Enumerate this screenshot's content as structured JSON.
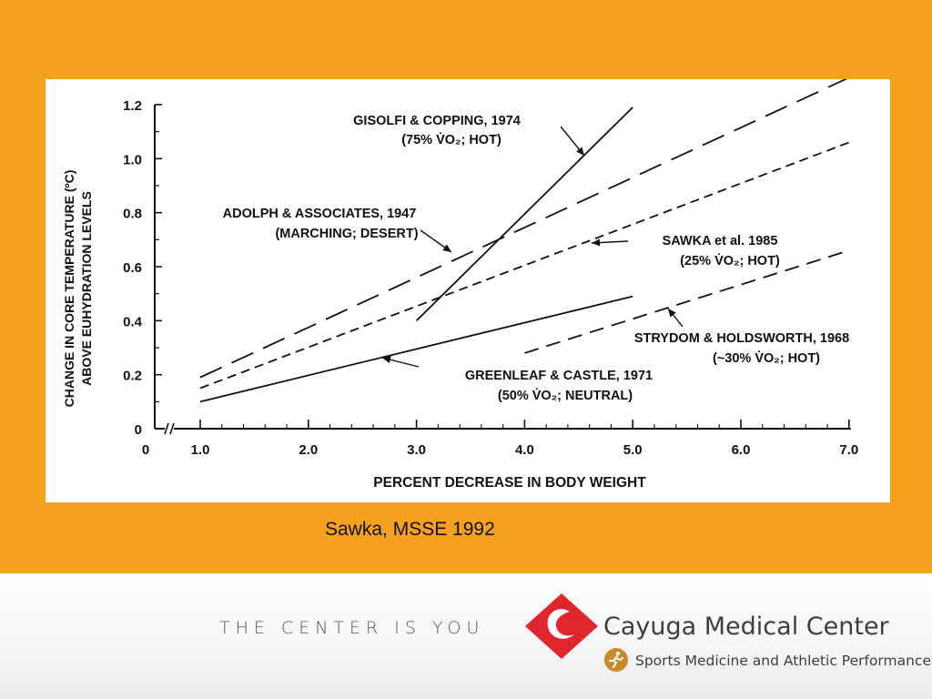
{
  "caption": "Sawka, MSSE 1992",
  "footer": {
    "tagline": "THE CENTER IS YOU",
    "brand_name": "Cayuga Medical Center",
    "sub_brand": "Sports Medicine and Athletic Performance",
    "logo_icon": "cayuga-diamond-logo-icon",
    "sub_icon": "runner-badge-icon"
  },
  "colors": {
    "background": "#f5a11e",
    "logo_red": "#e0262c",
    "runner_badge": "#c98a2a",
    "footer_text": "#3e3e3e"
  },
  "chart_data": {
    "type": "line",
    "xlabel": "PERCENT DECREASE IN BODY WEIGHT",
    "ylabel_lines": [
      "CHANGE IN CORE TEMPERATURE (ºC)",
      "ABOVE EUHYDRATION LEVELS"
    ],
    "xlim": [
      0,
      7
    ],
    "ylim": [
      0,
      1.2
    ],
    "x_axis_break": true,
    "x_ticks": [
      "0",
      "1.0",
      "2.0",
      "3.0",
      "4.0",
      "5.0",
      "6.0",
      "7.0"
    ],
    "y_ticks": [
      "0",
      "0.2",
      "0.4",
      "0.6",
      "0.8",
      "1.0",
      "1.2"
    ],
    "grid": false,
    "series": [
      {
        "name": "GISOLFI & COPPING, 1974",
        "condition": "(75% V̇O₂; HOT)",
        "style": "solid",
        "points": [
          [
            3.0,
            0.4
          ],
          [
            5.0,
            1.19
          ]
        ]
      },
      {
        "name": "ADOLPH & ASSOCIATES, 1947",
        "condition": "(MARCHING; DESERT)",
        "style": "long-dash",
        "points": [
          [
            1.0,
            0.19
          ],
          [
            7.0,
            1.3
          ]
        ]
      },
      {
        "name": "SAWKA et al. 1985",
        "condition": "(25% V̇O₂; HOT)",
        "style": "short-dash",
        "points": [
          [
            1.0,
            0.15
          ],
          [
            7.0,
            1.06
          ]
        ]
      },
      {
        "name": "GREENLEAF & CASTLE, 1971",
        "condition": "(50% V̇O₂; NEUTRAL)",
        "style": "solid",
        "points": [
          [
            1.0,
            0.1
          ],
          [
            5.0,
            0.49
          ]
        ]
      },
      {
        "name": "STRYDOM & HOLDSWORTH, 1968",
        "condition": "(~30% V̇O₂; HOT)",
        "style": "medium-dash",
        "points": [
          [
            4.0,
            0.28
          ],
          [
            7.0,
            0.66
          ]
        ]
      }
    ]
  }
}
